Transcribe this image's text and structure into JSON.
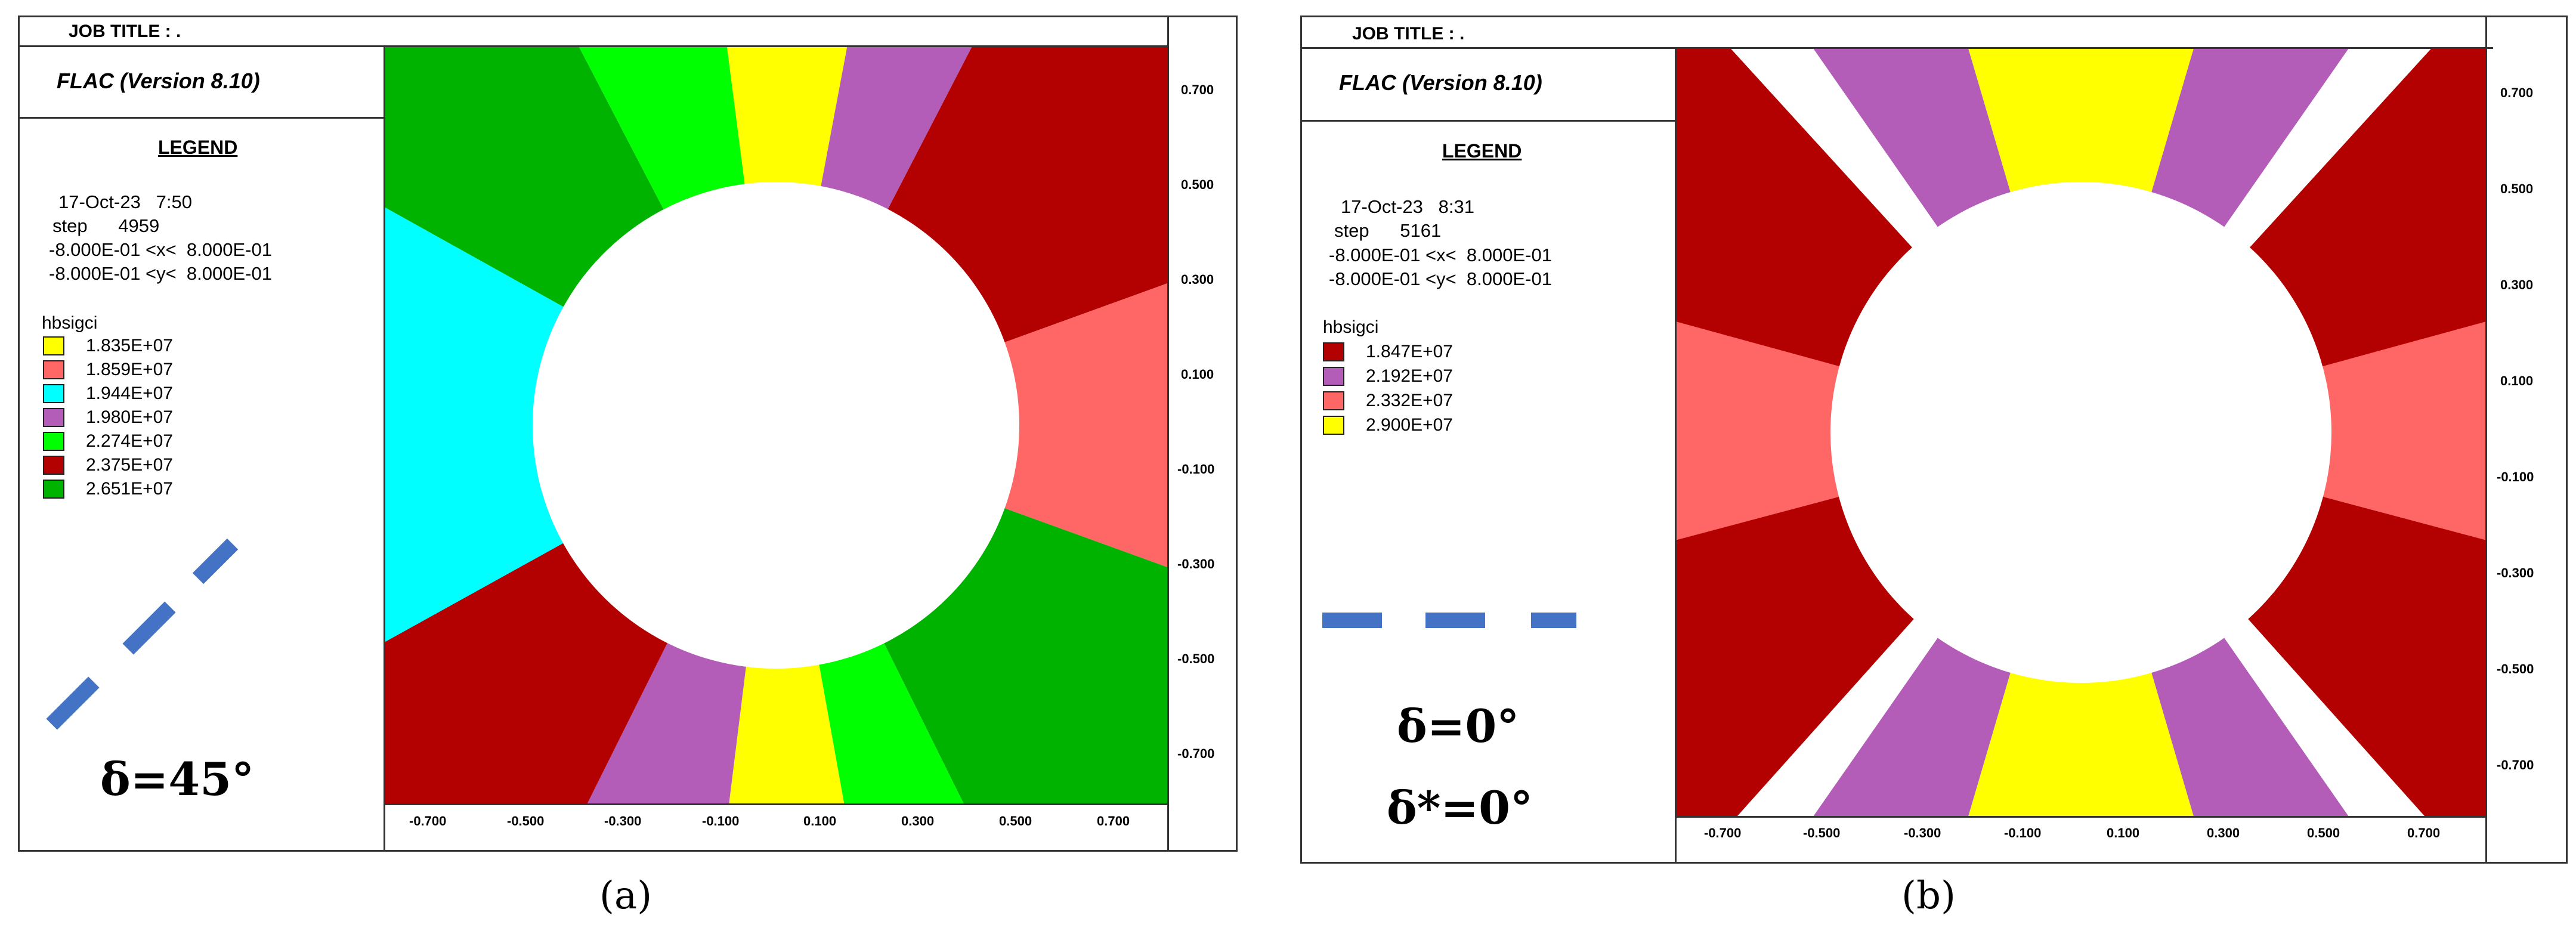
{
  "panels": [
    {
      "job_title": "JOB TITLE : .",
      "software": "FLAC (Version 8.10)",
      "legend_heading": "LEGEND",
      "date_line": "17-Oct-23   7:50",
      "step_line": "step      4959",
      "x_range": "-8.000E-01 <x<  8.000E-01",
      "y_range": "-8.000E-01 <y<  8.000E-01",
      "variable": "hbsigci",
      "legend": [
        {
          "value": "1.835E+07",
          "color": "#ffff00"
        },
        {
          "value": "1.859E+07",
          "color": "#ff6666"
        },
        {
          "value": "1.944E+07",
          "color": "#00ffff"
        },
        {
          "value": "1.980E+07",
          "color": "#b35cb8"
        },
        {
          "value": "2.274E+07",
          "color": "#00ff00"
        },
        {
          "value": "2.375E+07",
          "color": "#b30000"
        },
        {
          "value": "2.651E+07",
          "color": "#00b300"
        }
      ],
      "angle_label": "δ=45°",
      "angle_label_2": "",
      "caption": "(a)",
      "y_ticks": [
        "0.700",
        "0.500",
        "0.300",
        "0.100",
        "-0.100",
        "-0.300",
        "-0.500",
        "-0.700"
      ],
      "x_ticks": [
        "-0.700",
        "-0.500",
        "-0.300",
        "-0.100",
        "0.100",
        "0.300",
        "0.500",
        "0.700"
      ],
      "dash_color": "#4472c4"
    },
    {
      "job_title": "JOB TITLE : .",
      "software": "FLAC (Version 8.10)",
      "legend_heading": "LEGEND",
      "date_line": "17-Oct-23   8:31",
      "step_line": "step      5161",
      "x_range": "-8.000E-01 <x<  8.000E-01",
      "y_range": "-8.000E-01 <y<  8.000E-01",
      "variable": "hbsigci",
      "legend": [
        {
          "value": "1.847E+07",
          "color": "#b30000"
        },
        {
          "value": "2.192E+07",
          "color": "#b35cb8"
        },
        {
          "value": "2.332E+07",
          "color": "#ff6666"
        },
        {
          "value": "2.900E+07",
          "color": "#ffff00"
        }
      ],
      "angle_label": "δ=0°",
      "angle_label_2": "δ*=0°",
      "caption": "(b)",
      "y_ticks": [
        "0.700",
        "0.500",
        "0.300",
        "0.100",
        "-0.100",
        "-0.300",
        "-0.500",
        "-0.700"
      ],
      "x_ticks": [
        "-0.700",
        "-0.500",
        "-0.300",
        "-0.100",
        "0.100",
        "0.300",
        "0.500",
        "0.700"
      ],
      "dash_color": "#4472c4"
    }
  ]
}
